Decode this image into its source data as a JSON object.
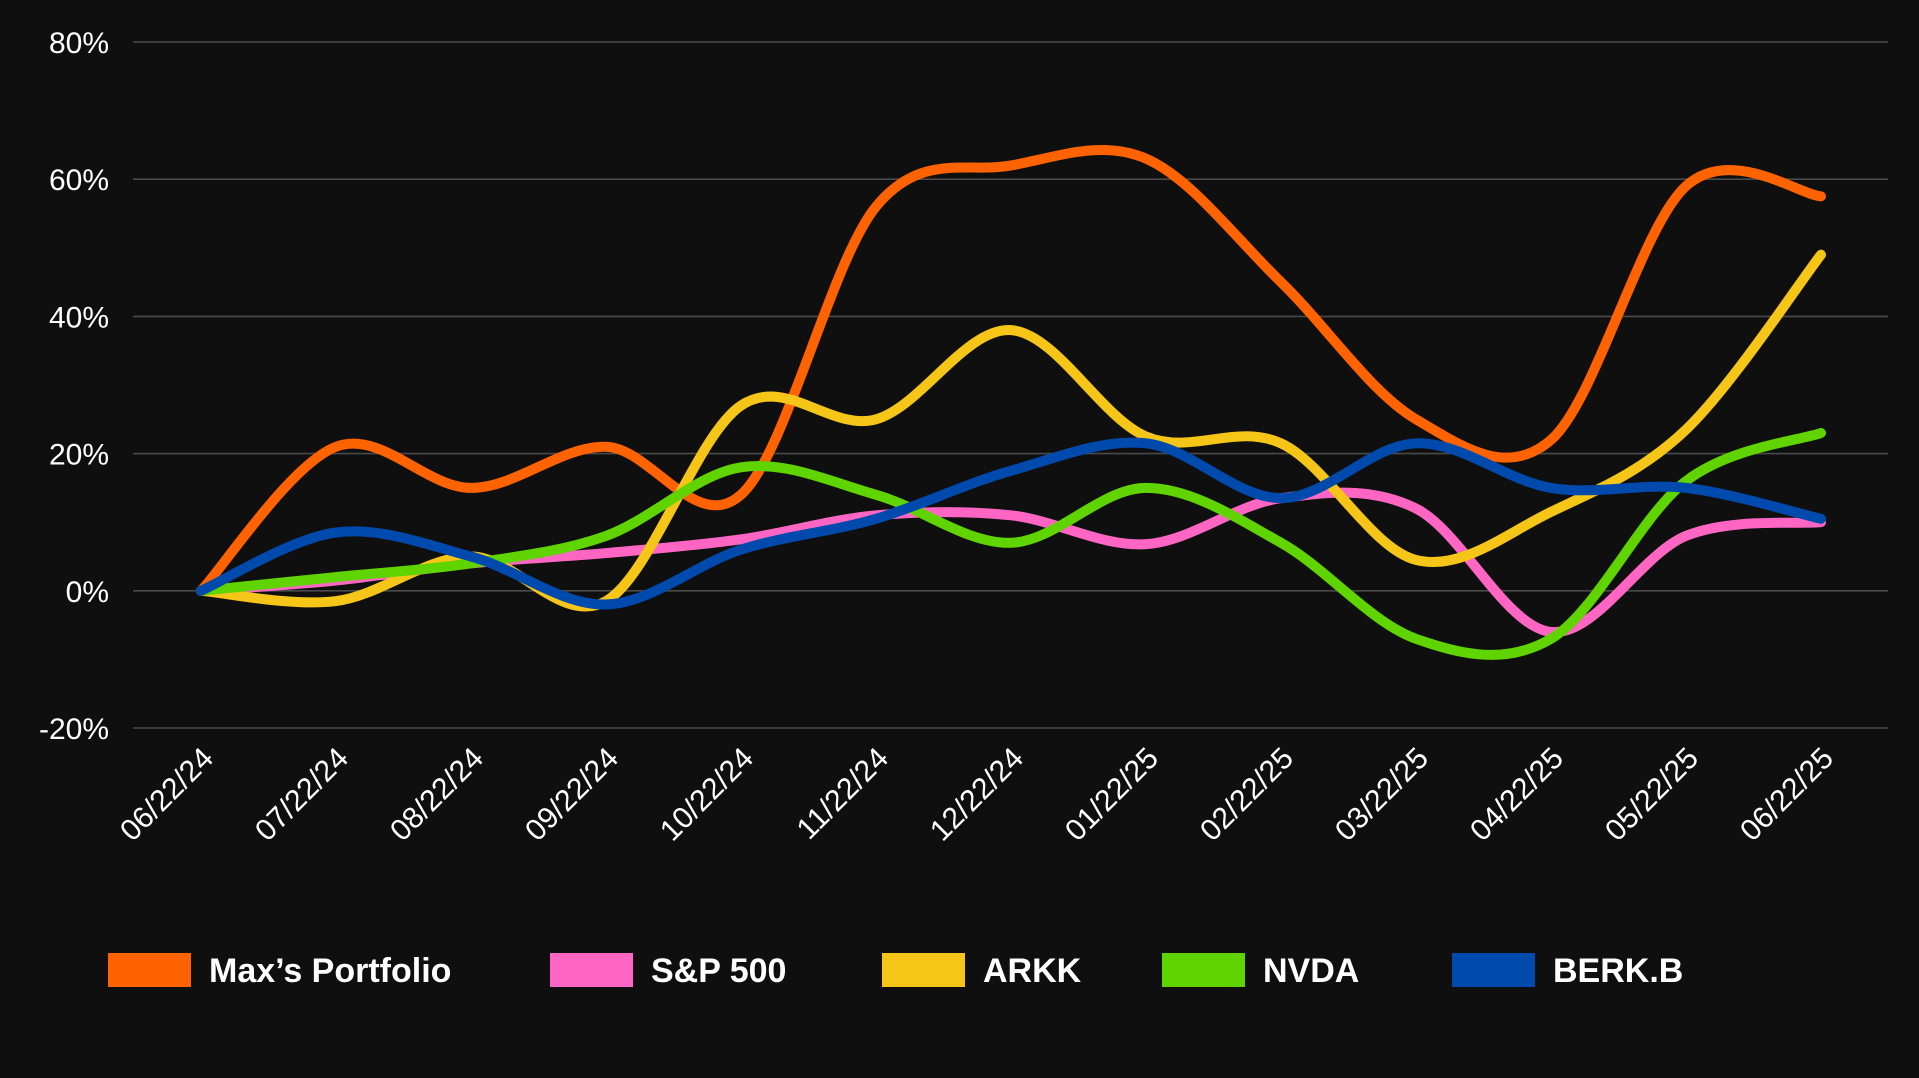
{
  "chart_data": {
    "type": "line",
    "title": "",
    "xlabel": "",
    "ylabel": "",
    "x": [
      "06/22/24",
      "07/22/24",
      "08/22/24",
      "09/22/24",
      "10/22/24",
      "11/22/24",
      "12/22/24",
      "01/22/25",
      "02/22/25",
      "03/22/25",
      "04/22/25",
      "05/22/25",
      "06/22/25"
    ],
    "ylim": [
      -20,
      80
    ],
    "y_ticks": [
      80,
      60,
      40,
      20,
      0,
      -20
    ],
    "y_tick_labels": [
      "80%",
      "60%",
      "40%",
      "20%",
      "0%",
      "-20%"
    ],
    "y_unit": "%",
    "grid": "horizontal",
    "legend_position": "bottom",
    "series": [
      {
        "name": "Max’s Portfolio",
        "color": "#ff6200",
        "values": [
          0,
          21,
          15,
          21,
          14,
          56,
          62,
          63,
          45,
          25,
          22,
          59,
          57.5
        ]
      },
      {
        "name": "S&P 500",
        "color": "#ff66c4",
        "values": [
          0,
          1.5,
          4,
          5.5,
          7.5,
          11,
          11,
          6.8,
          13.5,
          12,
          -6,
          8,
          10
        ]
      },
      {
        "name": "ARKK",
        "color": "#f5c518",
        "values": [
          0,
          -1.5,
          5,
          -1.5,
          27,
          25,
          38,
          22.5,
          21.5,
          4.5,
          11.5,
          23.5,
          49
        ]
      },
      {
        "name": "NVDA",
        "color": "#5fd400",
        "values": [
          0,
          2,
          4,
          8,
          18,
          14,
          7,
          15,
          7,
          -7,
          -7,
          16,
          23
        ]
      },
      {
        "name": "BERK.B",
        "color": "#004aad",
        "values": [
          0,
          8.5,
          5,
          -2,
          6,
          10.5,
          17.5,
          21.5,
          13.5,
          21.5,
          15,
          15,
          10.5
        ]
      }
    ]
  }
}
